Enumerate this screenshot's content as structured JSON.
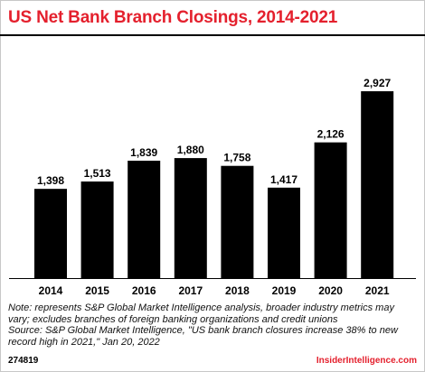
{
  "title": "US Net Bank Branch Closings, 2014-2021",
  "notes": [
    "Note: represents S&P Global Market Intelligence analysis, broader industry metrics may",
    "vary; excludes branches of foreign banking organizations and credit unions",
    "Source: S&P Global Market Intelligence, \"US bank branch closures increase 38% to new",
    "record high in 2021,\" Jan 20, 2022"
  ],
  "chart_id": "274819",
  "brand": "InsiderIntelligence.com",
  "colors": {
    "title": "#e4202d",
    "bar": "#000000",
    "brand": "#e4202d"
  },
  "chart_data": {
    "type": "bar",
    "title": "US Net Bank Branch Closings, 2014-2021",
    "categories": [
      "2014",
      "2015",
      "2016",
      "2017",
      "2018",
      "2019",
      "2020",
      "2021"
    ],
    "values": [
      1398,
      1513,
      1839,
      1880,
      1758,
      1417,
      2126,
      2927
    ],
    "data_labels": [
      "1,398",
      "1,513",
      "1,839",
      "1,880",
      "1,758",
      "1,417",
      "2,126",
      "2,927"
    ],
    "xlabel": "",
    "ylabel": "",
    "ylim": [
      0,
      3000
    ],
    "grid": false,
    "legend": "none"
  }
}
